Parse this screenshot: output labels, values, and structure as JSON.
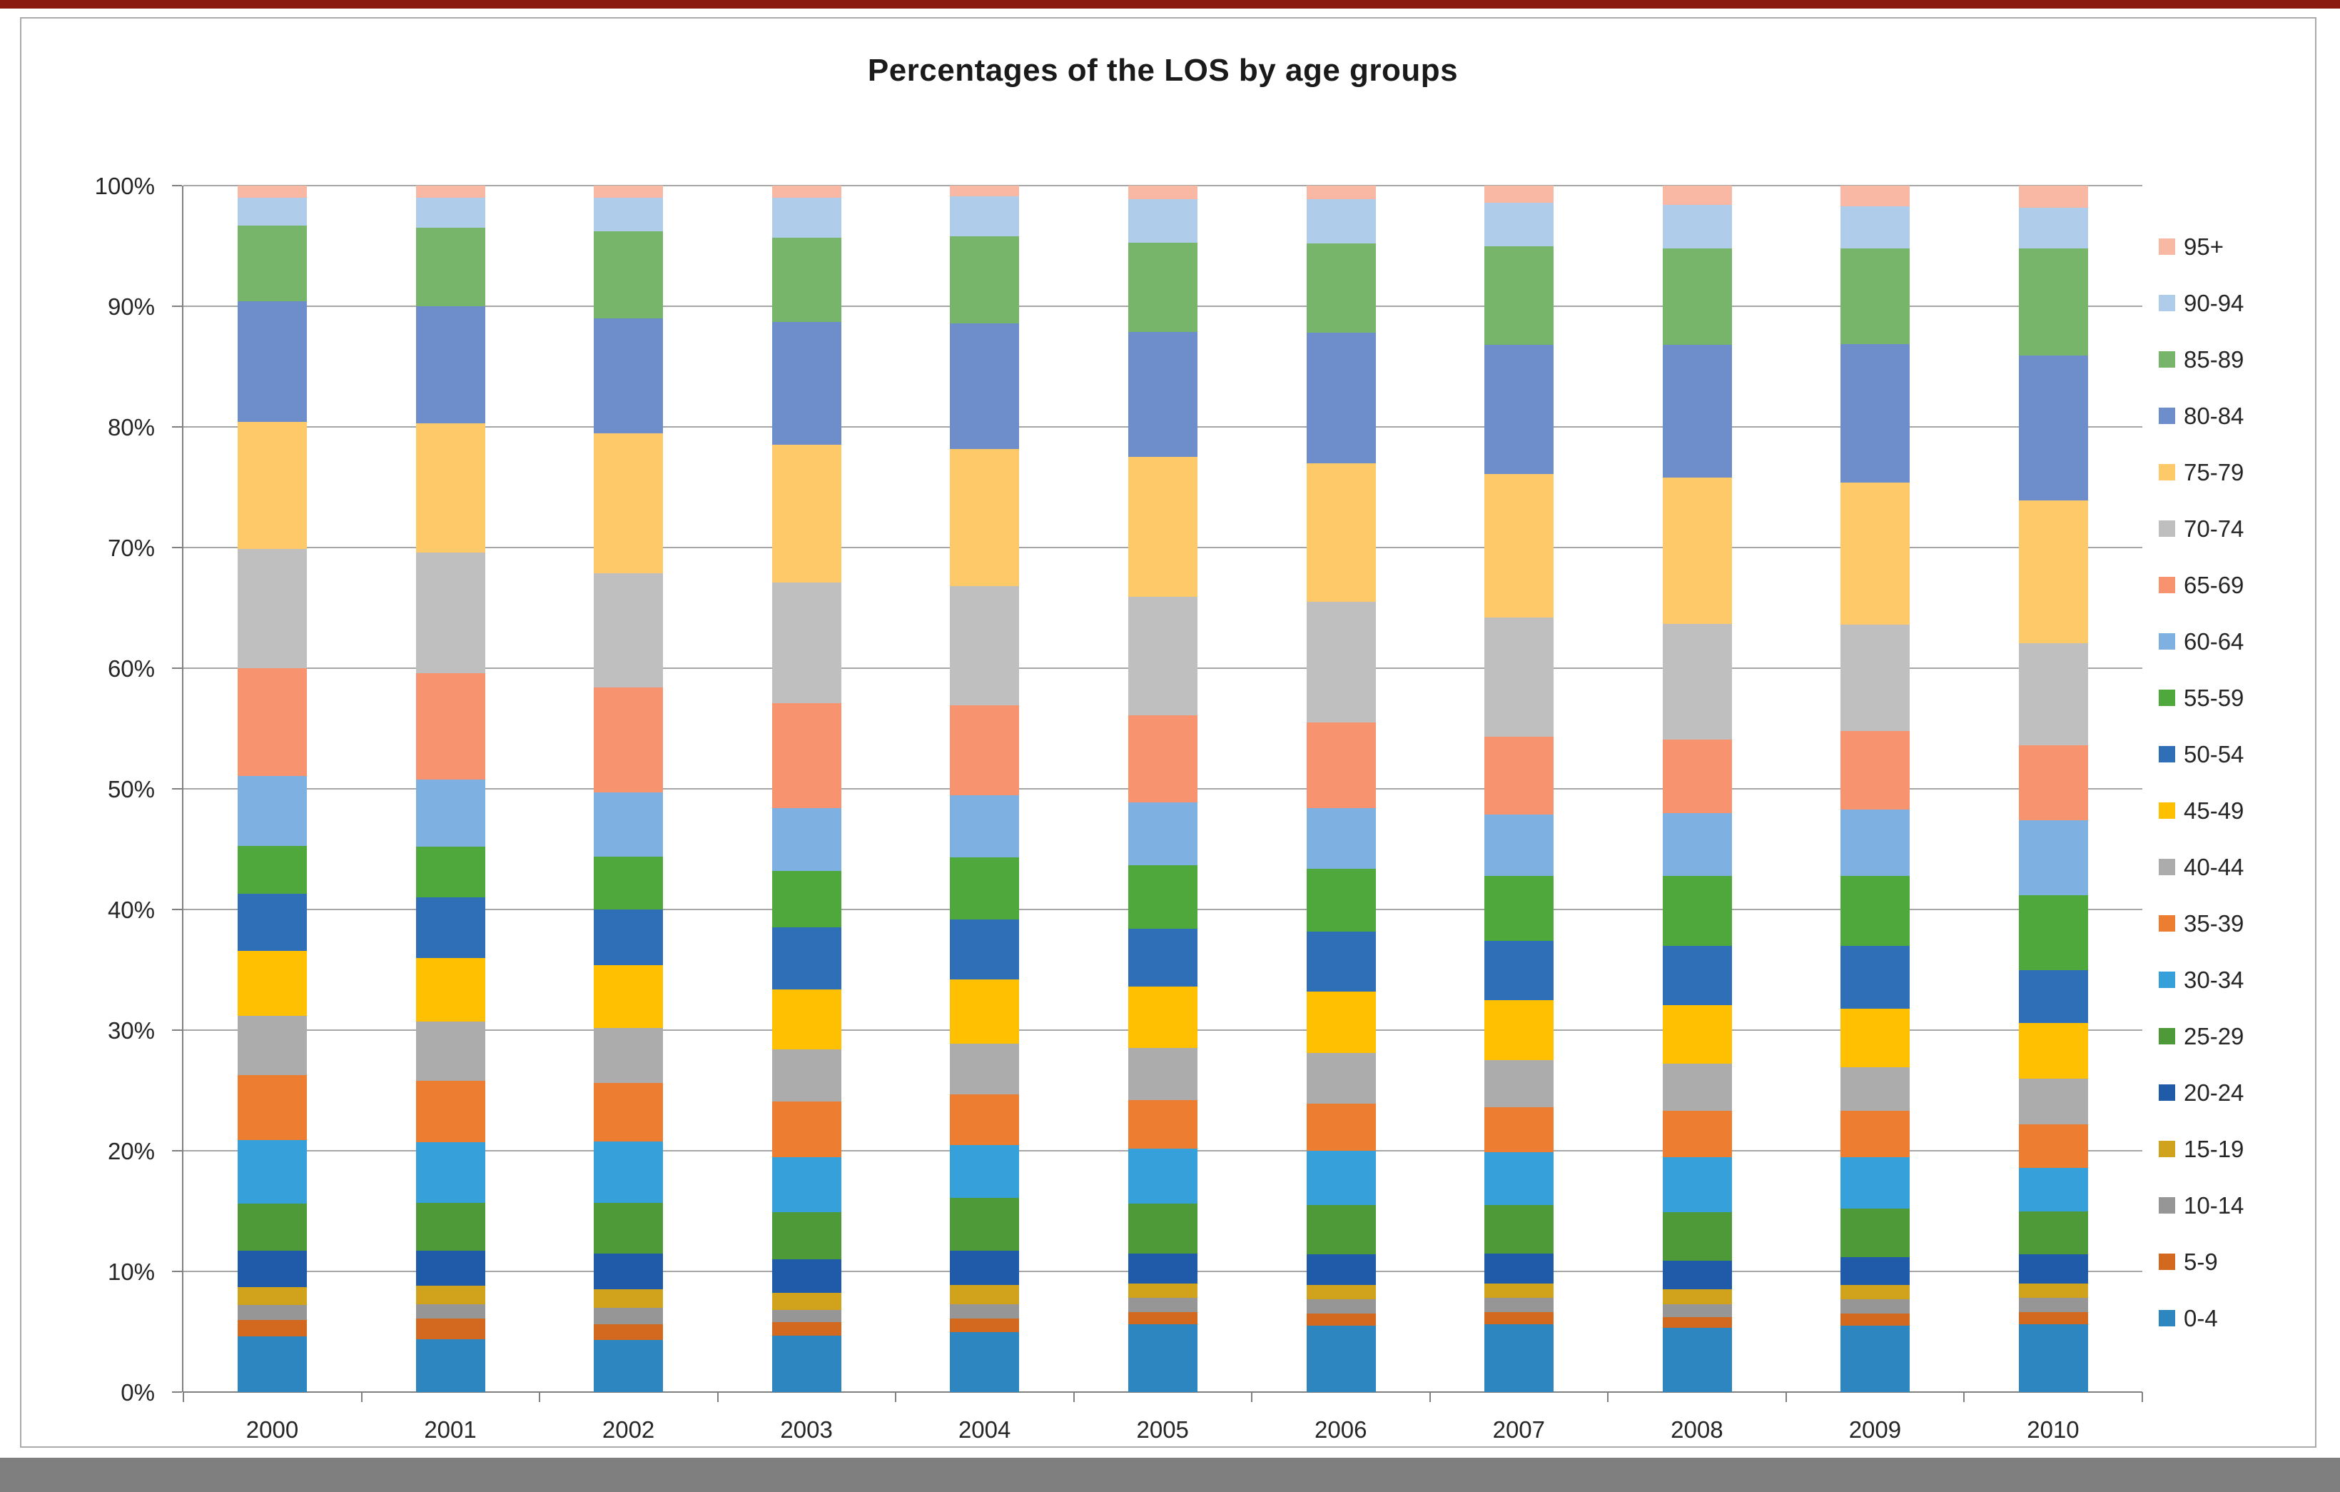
{
  "page": {
    "top_strip_color": "#8a1a0f",
    "bottom_strip_color": "#7f7f7f",
    "frame_border_color": "#ababab",
    "gridline_color": "#a6a6a6",
    "axis_color": "#808080",
    "text_color": "#262626"
  },
  "chart_data": {
    "type": "bar",
    "stacked": true,
    "percent_stacked": true,
    "title": "Percentages of the LOS by age groups",
    "xlabel": "",
    "ylabel": "",
    "grid": true,
    "legend_position": "right",
    "ylim": [
      0,
      100
    ],
    "y_ticks": [
      "0%",
      "10%",
      "20%",
      "30%",
      "40%",
      "50%",
      "60%",
      "70%",
      "80%",
      "90%",
      "100%"
    ],
    "categories": [
      "2000",
      "2001",
      "2002",
      "2003",
      "2004",
      "2005",
      "2006",
      "2007",
      "2008",
      "2009",
      "2010"
    ],
    "series_note": "series listed bottom-to-top of stack; values are percent of total per year",
    "series": [
      {
        "name": "0-4",
        "color": "#2e86c1",
        "values": [
          4.6,
          4.4,
          4.3,
          4.7,
          5.0,
          5.6,
          5.5,
          5.6,
          5.3,
          5.5,
          5.6
        ]
      },
      {
        "name": "5-9",
        "color": "#d2691e",
        "values": [
          1.4,
          1.7,
          1.3,
          1.1,
          1.1,
          1.0,
          1.0,
          1.0,
          0.9,
          1.0,
          1.0
        ]
      },
      {
        "name": "10-14",
        "color": "#969696",
        "values": [
          1.2,
          1.2,
          1.4,
          1.0,
          1.2,
          1.2,
          1.2,
          1.2,
          1.1,
          1.2,
          1.2
        ]
      },
      {
        "name": "15-19",
        "color": "#d1a31c",
        "values": [
          1.5,
          1.5,
          1.5,
          1.4,
          1.6,
          1.2,
          1.2,
          1.2,
          1.2,
          1.2,
          1.2
        ]
      },
      {
        "name": "20-24",
        "color": "#1f5ba8",
        "values": [
          3.0,
          2.9,
          3.0,
          2.8,
          2.8,
          2.5,
          2.5,
          2.5,
          2.4,
          2.3,
          2.4
        ]
      },
      {
        "name": "25-29",
        "color": "#4e9a38",
        "values": [
          3.9,
          4.0,
          4.2,
          3.9,
          4.4,
          4.1,
          4.1,
          4.0,
          4.0,
          4.0,
          3.6
        ]
      },
      {
        "name": "30-34",
        "color": "#36a0da",
        "values": [
          5.3,
          5.0,
          5.1,
          4.6,
          4.4,
          4.6,
          4.5,
          4.4,
          4.6,
          4.3,
          3.6
        ]
      },
      {
        "name": "35-39",
        "color": "#ed7d31",
        "values": [
          5.4,
          5.1,
          4.8,
          4.6,
          4.2,
          4.0,
          3.9,
          3.7,
          3.8,
          3.8,
          3.6
        ]
      },
      {
        "name": "40-44",
        "color": "#acacac",
        "values": [
          4.9,
          4.9,
          4.6,
          4.3,
          4.2,
          4.3,
          4.2,
          3.9,
          3.9,
          3.6,
          3.8
        ]
      },
      {
        "name": "45-49",
        "color": "#ffc001",
        "values": [
          5.4,
          5.3,
          5.2,
          5.0,
          5.3,
          5.1,
          5.1,
          5.0,
          4.9,
          4.9,
          4.6
        ]
      },
      {
        "name": "50-54",
        "color": "#2e6fb7",
        "values": [
          4.7,
          5.0,
          4.6,
          5.1,
          5.0,
          4.8,
          5.0,
          4.9,
          4.9,
          5.2,
          4.4
        ]
      },
      {
        "name": "55-59",
        "color": "#4fa83c",
        "values": [
          4.0,
          4.2,
          4.4,
          4.7,
          5.1,
          5.3,
          5.2,
          5.4,
          5.8,
          5.8,
          6.2
        ]
      },
      {
        "name": "60-64",
        "color": "#7eb1e1",
        "values": [
          5.8,
          5.6,
          5.3,
          5.2,
          5.2,
          5.2,
          5.0,
          5.1,
          5.2,
          5.5,
          6.2
        ]
      },
      {
        "name": "65-69",
        "color": "#f7936f",
        "values": [
          8.9,
          8.8,
          8.7,
          8.7,
          7.4,
          7.2,
          7.1,
          6.4,
          6.1,
          6.5,
          6.2
        ]
      },
      {
        "name": "70-74",
        "color": "#bfbfbf",
        "values": [
          9.9,
          10.0,
          9.5,
          10.0,
          9.9,
          9.8,
          10.0,
          9.9,
          9.6,
          8.8,
          8.5
        ]
      },
      {
        "name": "75-79",
        "color": "#fec968",
        "values": [
          10.5,
          10.7,
          11.6,
          11.4,
          11.4,
          11.6,
          11.5,
          11.9,
          12.1,
          11.8,
          11.8
        ]
      },
      {
        "name": "80-84",
        "color": "#6e8dcb",
        "values": [
          10.0,
          9.7,
          9.5,
          10.2,
          10.4,
          10.4,
          10.8,
          10.7,
          11.0,
          11.5,
          12.0
        ]
      },
      {
        "name": "85-89",
        "color": "#76b56a",
        "values": [
          6.3,
          6.5,
          7.2,
          7.0,
          7.2,
          7.4,
          7.4,
          8.2,
          8.0,
          7.9,
          8.9
        ]
      },
      {
        "name": "90-94",
        "color": "#afccea",
        "values": [
          2.3,
          2.5,
          2.8,
          3.3,
          3.3,
          3.6,
          3.7,
          3.6,
          3.6,
          3.5,
          3.4
        ]
      },
      {
        "name": "95+",
        "color": "#f9b8a4",
        "values": [
          1.0,
          1.0,
          1.0,
          1.0,
          0.9,
          1.1,
          1.1,
          1.4,
          1.6,
          1.7,
          1.8
        ]
      }
    ]
  }
}
